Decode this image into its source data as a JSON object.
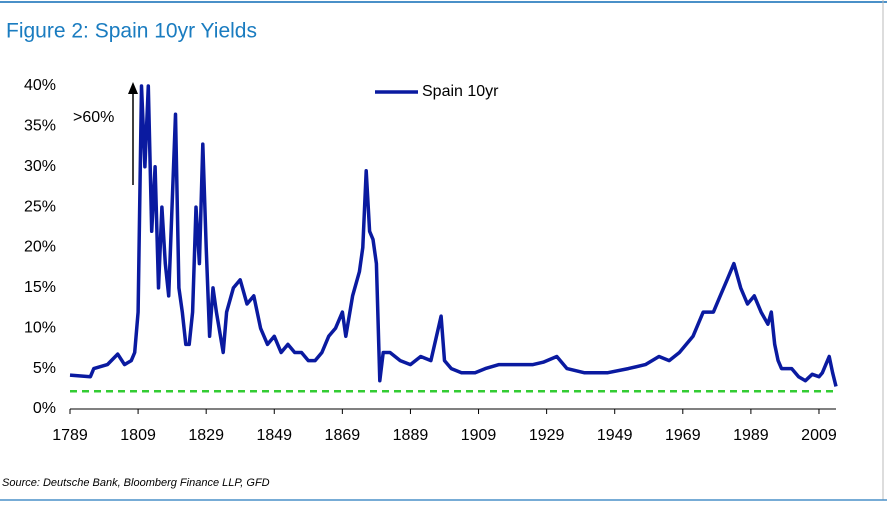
{
  "chart_data": {
    "type": "line",
    "title": "Figure 2: Spain 10yr Yields",
    "source": "Source: Deutsche Bank, Bloomberg Finance LLP, GFD",
    "annotation": ">60%",
    "x": [
      1789,
      1795,
      1796,
      1800,
      1803,
      1805,
      1807,
      1808,
      1809,
      1810,
      1811,
      1812,
      1813,
      1814,
      1815,
      1816,
      1817,
      1818,
      1820,
      1821,
      1822,
      1823,
      1824,
      1825,
      1826,
      1827,
      1828,
      1829,
      1830,
      1831,
      1832,
      1834,
      1835,
      1837,
      1839,
      1841,
      1843,
      1845,
      1847,
      1849,
      1851,
      1853,
      1855,
      1857,
      1859,
      1861,
      1863,
      1865,
      1867,
      1869,
      1870,
      1872,
      1874,
      1875,
      1876,
      1877,
      1878,
      1879,
      1880,
      1881,
      1883,
      1886,
      1889,
      1892,
      1895,
      1898,
      1899,
      1901,
      1904,
      1908,
      1911,
      1915,
      1920,
      1925,
      1928,
      1932,
      1935,
      1940,
      1947,
      1953,
      1958,
      1962,
      1965,
      1968,
      1972,
      1975,
      1978,
      1980,
      1982,
      1984,
      1986,
      1988,
      1990,
      1992,
      1994,
      1995,
      1996,
      1997,
      1998,
      1999,
      2001,
      2003,
      2005,
      2007,
      2009,
      2010,
      2011,
      2012,
      2013,
      2014
    ],
    "series": [
      {
        "name": "Spain 10yr",
        "color": "#0a1aa0",
        "values": [
          4.2,
          4.0,
          5.0,
          5.5,
          6.8,
          5.5,
          6.0,
          7.0,
          12,
          40,
          30,
          40,
          22,
          30,
          15,
          25,
          18,
          14,
          36.5,
          15,
          12,
          8,
          8,
          12,
          25,
          18,
          32.8,
          20,
          9,
          15,
          12,
          7,
          12,
          15,
          16,
          13,
          14,
          10,
          8,
          9,
          7,
          8,
          7,
          7,
          6,
          6,
          7,
          9,
          10,
          12,
          9,
          14,
          17,
          20,
          29.5,
          22,
          21,
          18,
          3.5,
          7,
          7,
          6,
          5.5,
          6.5,
          6,
          11.5,
          6,
          5,
          4.5,
          4.5,
          5,
          5.5,
          5.5,
          5.5,
          5.8,
          6.5,
          5,
          4.5,
          4.5,
          5,
          5.5,
          6.5,
          6,
          7,
          9,
          12,
          12,
          14,
          16,
          18,
          15,
          13,
          14,
          12,
          10.5,
          12,
          8,
          6,
          5,
          5,
          5,
          4,
          3.5,
          4.3,
          4,
          4.5,
          5.5,
          6.5,
          4.5,
          2.8
        ]
      }
    ],
    "reference_line": {
      "value": 2.2,
      "color": "#33cc33"
    },
    "xlim": [
      1789,
      2014
    ],
    "xticks": [
      1789,
      1809,
      1829,
      1849,
      1869,
      1889,
      1909,
      1929,
      1949,
      1969,
      1989,
      2009
    ],
    "ylim": [
      0,
      40
    ],
    "yticks": [
      {
        "value": 0,
        "label": "0%"
      },
      {
        "value": 5,
        "label": "5%"
      },
      {
        "value": 10,
        "label": "10%"
      },
      {
        "value": 15,
        "label": "15%"
      },
      {
        "value": 20,
        "label": "20%"
      },
      {
        "value": 25,
        "label": "25%"
      },
      {
        "value": 30,
        "label": "30%"
      },
      {
        "value": 35,
        "label": "35%"
      },
      {
        "value": 40,
        "label": "40%"
      }
    ],
    "grid": false
  }
}
